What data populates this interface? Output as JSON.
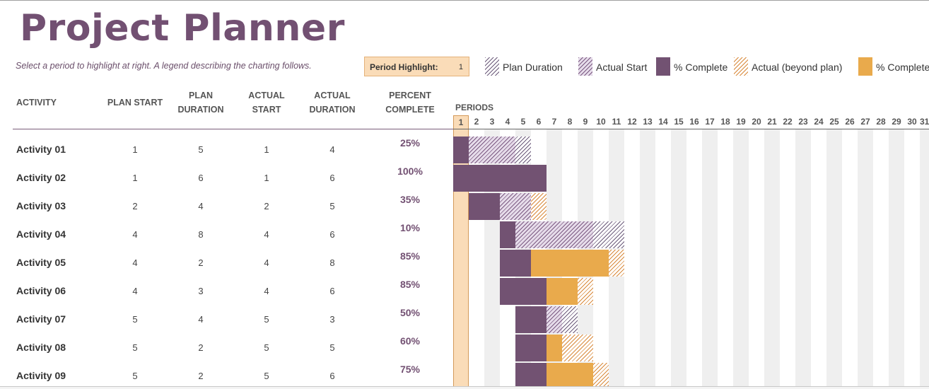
{
  "title": "Project Planner",
  "subtitle": "Select a period to highlight at right.  A legend describing the charting follows.",
  "period_highlight": {
    "label": "Period Highlight:",
    "value": "1"
  },
  "legend": [
    {
      "label": "Plan Duration",
      "pattern": "plan"
    },
    {
      "label": "Actual Start",
      "pattern": "actual-start"
    },
    {
      "label": "% Complete",
      "pattern": "complete"
    },
    {
      "label": "Actual (beyond plan)",
      "pattern": "beyond"
    },
    {
      "label": "% Complete (beyond plan)",
      "pattern": "complete-beyond"
    }
  ],
  "columns": {
    "activity": "ACTIVITY",
    "plan_start": "PLAN START",
    "plan_duration": "PLAN DURATION",
    "actual_start": "ACTUAL START",
    "actual_duration": "ACTUAL DURATION",
    "percent_complete": "PERCENT COMPLETE",
    "periods": "PERIODS"
  },
  "periods": [
    "1",
    "2",
    "3",
    "4",
    "5",
    "6",
    "7",
    "8",
    "9",
    "10",
    "11",
    "12",
    "13",
    "14",
    "15",
    "16",
    "17",
    "18",
    "19",
    "20",
    "21",
    "22",
    "23",
    "24",
    "25",
    "26",
    "27",
    "28",
    "29",
    "30",
    "31"
  ],
  "highlight_period": 1,
  "activities": [
    {
      "name": "Activity 01",
      "plan_start": 1,
      "plan_duration": 5,
      "actual_start": 1,
      "actual_duration": 4,
      "percent": "25%"
    },
    {
      "name": "Activity 02",
      "plan_start": 1,
      "plan_duration": 6,
      "actual_start": 1,
      "actual_duration": 6,
      "percent": "100%"
    },
    {
      "name": "Activity 03",
      "plan_start": 2,
      "plan_duration": 4,
      "actual_start": 2,
      "actual_duration": 5,
      "percent": "35%"
    },
    {
      "name": "Activity 04",
      "plan_start": 4,
      "plan_duration": 8,
      "actual_start": 4,
      "actual_duration": 6,
      "percent": "10%"
    },
    {
      "name": "Activity 05",
      "plan_start": 4,
      "plan_duration": 2,
      "actual_start": 4,
      "actual_duration": 8,
      "percent": "85%"
    },
    {
      "name": "Activity 06",
      "plan_start": 4,
      "plan_duration": 3,
      "actual_start": 4,
      "actual_duration": 6,
      "percent": "85%"
    },
    {
      "name": "Activity 07",
      "plan_start": 5,
      "plan_duration": 4,
      "actual_start": 5,
      "actual_duration": 3,
      "percent": "50%"
    },
    {
      "name": "Activity 08",
      "plan_start": 5,
      "plan_duration": 2,
      "actual_start": 5,
      "actual_duration": 5,
      "percent": "60%"
    },
    {
      "name": "Activity 09",
      "plan_start": 5,
      "plan_duration": 2,
      "actual_start": 5,
      "actual_duration": 6,
      "percent": "75%"
    }
  ]
}
